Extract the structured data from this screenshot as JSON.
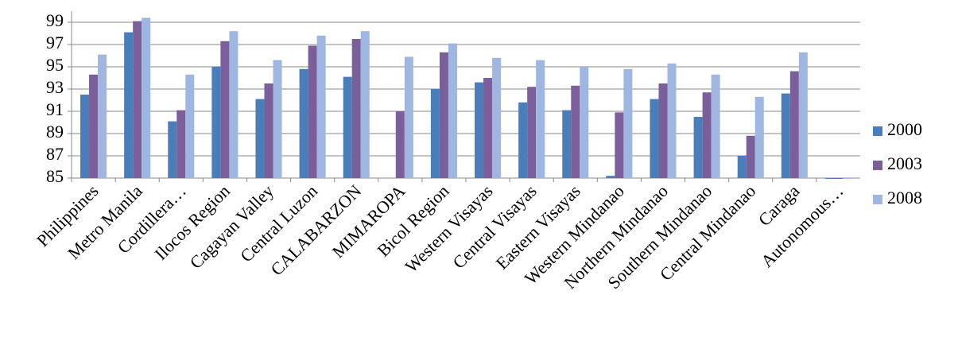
{
  "chart_data": {
    "type": "bar",
    "categories": [
      "Philippines",
      "Metro Manila",
      "Cordillera…",
      "Ilocos Region",
      "Cagayan Valley",
      "Central Luzon",
      "CALABARZON",
      "MIMAROPA",
      "Bicol Region",
      "Western Visayas",
      "Central Visayas",
      "Eastern Visayas",
      "Western Mindanao",
      "Northern Mindanao",
      "Southern Mindanao",
      "Central Mindanao",
      "Caraga",
      "Autonomous…"
    ],
    "series": [
      {
        "name": "2000",
        "color": "#4a7ebb",
        "values": [
          92.5,
          98.1,
          90.1,
          95.0,
          92.1,
          94.8,
          94.1,
          null,
          93.0,
          93.6,
          91.8,
          91.1,
          85.2,
          92.1,
          90.5,
          87.0,
          92.6,
          85.0
        ]
      },
      {
        "name": "2003",
        "color": "#7b5f9b",
        "values": [
          94.3,
          99.1,
          91.1,
          97.3,
          93.5,
          96.9,
          97.5,
          91.0,
          96.3,
          94.0,
          93.2,
          93.3,
          90.9,
          93.5,
          92.7,
          88.8,
          94.6,
          85.0
        ]
      },
      {
        "name": "2008",
        "color": "#9fb6e0",
        "values": [
          96.1,
          99.4,
          94.3,
          98.2,
          95.6,
          97.8,
          98.2,
          95.9,
          97.1,
          95.8,
          95.6,
          95.0,
          94.8,
          95.3,
          94.3,
          92.3,
          96.3,
          85.0
        ]
      }
    ],
    "ylim": [
      85,
      100
    ],
    "yticks": [
      85,
      87,
      89,
      91,
      93,
      95,
      97,
      99
    ],
    "grid": true,
    "legend": "right"
  }
}
